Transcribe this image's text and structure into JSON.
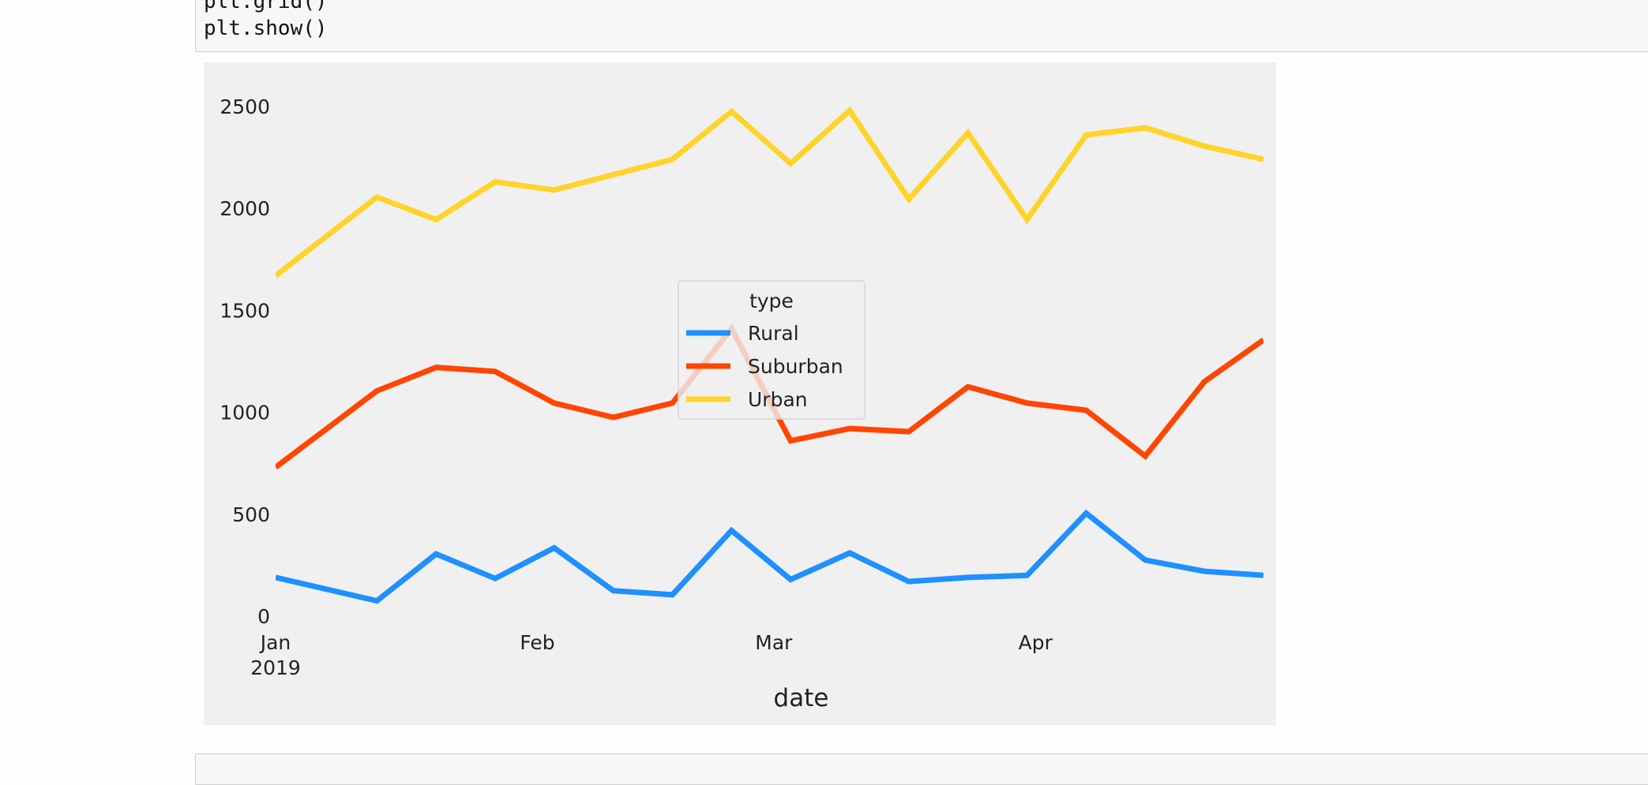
{
  "code_cell": {
    "lines": [
      "plt.grid()",
      "plt.show()"
    ]
  },
  "colors": {
    "figure_bg": "#f0f0f0",
    "axes_bg": "#f0f0f0",
    "text": "#222222",
    "rural": "#1e90ff",
    "suburban": "#ff4500",
    "urban": "#ffd42a"
  },
  "chart_data": {
    "type": "line",
    "title": "",
    "xlabel": "date",
    "ylabel": "",
    "x": [
      "2019-01-06",
      "2019-01-13",
      "2019-01-20",
      "2019-01-27",
      "2019-02-03",
      "2019-02-10",
      "2019-02-17",
      "2019-02-24",
      "2019-03-03",
      "2019-03-10",
      "2019-03-17",
      "2019-03-24",
      "2019-03-31",
      "2019-04-07",
      "2019-04-14",
      "2019-04-21",
      "2019-04-28"
    ],
    "xlim": [
      "2019-01-01",
      "2019-04-28"
    ],
    "ylim": [
      0,
      2600
    ],
    "yticks": [
      0,
      500,
      1000,
      1500,
      2000,
      2500
    ],
    "ytick_labels": [
      "0",
      "500",
      "1000",
      "1500",
      "2000",
      "2500"
    ],
    "xticks": [
      {
        "date": "2019-01-01",
        "label": "Jan",
        "sublabel": "2019"
      },
      {
        "date": "2019-02-01",
        "label": "Feb",
        "sublabel": ""
      },
      {
        "date": "2019-03-01",
        "label": "Mar",
        "sublabel": ""
      },
      {
        "date": "2019-04-01",
        "label": "Apr",
        "sublabel": ""
      }
    ],
    "grid": true,
    "legend": {
      "title": "type",
      "placement": "center"
    },
    "series": [
      {
        "name": "Rural",
        "color": "#1e90ff",
        "values": [
          190,
          75,
          305,
          185,
          335,
          125,
          105,
          420,
          180,
          310,
          170,
          190,
          200,
          505,
          275,
          220,
          200
        ]
      },
      {
        "name": "Suburban",
        "color": "#ff4500",
        "values": [
          730,
          1105,
          1220,
          1200,
          1045,
          975,
          1045,
          1410,
          860,
          920,
          905,
          1125,
          1045,
          1010,
          785,
          1150,
          1355
        ]
      },
      {
        "name": "Urban",
        "color": "#ffd42a",
        "values": [
          1670,
          2055,
          1945,
          2130,
          2090,
          2165,
          2240,
          2475,
          2220,
          2480,
          2045,
          2370,
          1945,
          2360,
          2395,
          2305,
          2240
        ]
      }
    ]
  }
}
